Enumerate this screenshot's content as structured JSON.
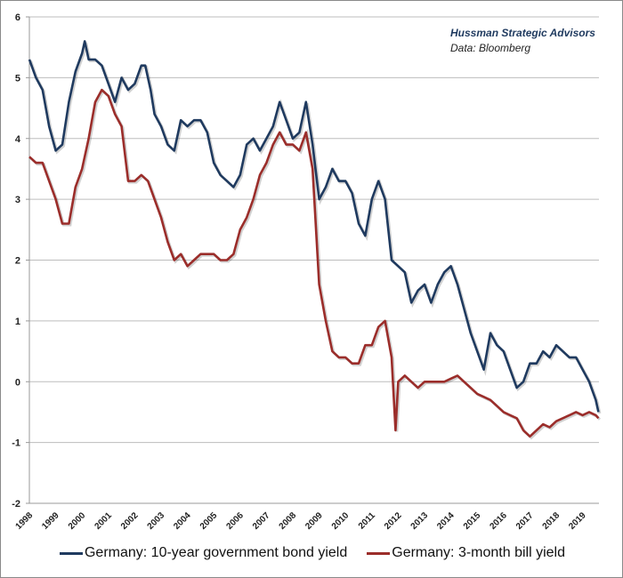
{
  "chart_data": {
    "type": "line",
    "title": "",
    "xlabel": "",
    "ylabel": "",
    "ylim": [
      -2,
      6
    ],
    "yticks": [
      "6",
      "5",
      "4",
      "3",
      "2",
      "1",
      "0",
      "-1",
      "-2"
    ],
    "xlim": [
      1998,
      2019.6
    ],
    "x_ticks": [
      "1998",
      "1999",
      "2000",
      "2001",
      "2002",
      "2003",
      "2004",
      "2005",
      "2006",
      "2007",
      "2008",
      "2009",
      "2010",
      "2011",
      "2012",
      "2013",
      "2014",
      "2015",
      "2016",
      "2017",
      "2018",
      "2019"
    ],
    "grid": "horizontal",
    "legend_position": "bottom",
    "annotation": {
      "line1": "Hussman Strategic Advisors",
      "line2": "Data: Bloomberg"
    },
    "series": [
      {
        "name": "Germany: 10-year government bond yield",
        "color": "#1f3a5f",
        "x": [
          1998,
          1998.25,
          1998.5,
          1998.75,
          1999,
          1999.25,
          1999.5,
          1999.75,
          2000,
          2000.1,
          2000.25,
          2000.5,
          2000.75,
          2001,
          2001.25,
          2001.5,
          2001.75,
          2002,
          2002.25,
          2002.4,
          2002.6,
          2002.75,
          2003,
          2003.25,
          2003.5,
          2003.75,
          2004,
          2004.25,
          2004.5,
          2004.75,
          2005,
          2005.25,
          2005.5,
          2005.75,
          2006,
          2006.25,
          2006.5,
          2006.75,
          2007,
          2007.25,
          2007.5,
          2007.75,
          2008,
          2008.25,
          2008.5,
          2008.75,
          2009,
          2009.25,
          2009.5,
          2009.75,
          2010,
          2010.25,
          2010.5,
          2010.75,
          2011,
          2011.25,
          2011.5,
          2011.75,
          2012,
          2012.25,
          2012.5,
          2012.75,
          2013,
          2013.25,
          2013.5,
          2013.75,
          2014,
          2014.25,
          2014.5,
          2014.75,
          2015,
          2015.25,
          2015.5,
          2015.75,
          2016,
          2016.25,
          2016.5,
          2016.75,
          2017,
          2017.25,
          2017.5,
          2017.75,
          2018,
          2018.25,
          2018.5,
          2018.75,
          2019,
          2019.25,
          2019.5,
          2019.6
        ],
        "y": [
          5.3,
          5.0,
          4.8,
          4.2,
          3.8,
          3.9,
          4.6,
          5.1,
          5.4,
          5.6,
          5.3,
          5.3,
          5.2,
          4.9,
          4.6,
          5.0,
          4.8,
          4.9,
          5.2,
          5.2,
          4.8,
          4.4,
          4.2,
          3.9,
          3.8,
          4.3,
          4.2,
          4.3,
          4.3,
          4.1,
          3.6,
          3.4,
          3.3,
          3.2,
          3.4,
          3.9,
          4.0,
          3.8,
          4.0,
          4.2,
          4.6,
          4.3,
          4.0,
          4.1,
          4.6,
          3.9,
          3.0,
          3.2,
          3.5,
          3.3,
          3.3,
          3.1,
          2.6,
          2.4,
          3.0,
          3.3,
          3.0,
          2.0,
          1.9,
          1.8,
          1.3,
          1.5,
          1.6,
          1.3,
          1.6,
          1.8,
          1.9,
          1.6,
          1.2,
          0.8,
          0.5,
          0.2,
          0.8,
          0.6,
          0.5,
          0.2,
          -0.1,
          0.0,
          0.3,
          0.3,
          0.5,
          0.4,
          0.6,
          0.5,
          0.4,
          0.4,
          0.2,
          0.0,
          -0.3,
          -0.5
        ]
      },
      {
        "name": "Germany: 3-month bill yield",
        "color": "#9b2d2a",
        "x": [
          1998,
          1998.25,
          1998.5,
          1998.75,
          1999,
          1999.25,
          1999.5,
          1999.75,
          2000,
          2000.25,
          2000.5,
          2000.75,
          2001,
          2001.25,
          2001.5,
          2001.75,
          2002,
          2002.25,
          2002.5,
          2002.75,
          2003,
          2003.25,
          2003.5,
          2003.75,
          2004,
          2004.25,
          2004.5,
          2004.75,
          2005,
          2005.25,
          2005.5,
          2005.75,
          2006,
          2006.25,
          2006.5,
          2006.75,
          2007,
          2007.25,
          2007.5,
          2007.75,
          2008,
          2008.25,
          2008.5,
          2008.75,
          2009,
          2009.25,
          2009.5,
          2009.75,
          2010,
          2010.25,
          2010.5,
          2010.75,
          2011,
          2011.25,
          2011.5,
          2011.75,
          2011.9,
          2012,
          2012.25,
          2012.5,
          2012.75,
          2013,
          2013.25,
          2013.5,
          2013.75,
          2014,
          2014.25,
          2014.5,
          2014.75,
          2015,
          2015.25,
          2015.5,
          2015.75,
          2016,
          2016.25,
          2016.5,
          2016.75,
          2017,
          2017.25,
          2017.5,
          2017.75,
          2018,
          2018.25,
          2018.5,
          2018.75,
          2019,
          2019.25,
          2019.5,
          2019.6
        ],
        "y": [
          3.7,
          3.6,
          3.6,
          3.3,
          3.0,
          2.6,
          2.6,
          3.2,
          3.5,
          4.0,
          4.6,
          4.8,
          4.7,
          4.4,
          4.2,
          3.3,
          3.3,
          3.4,
          3.3,
          3.0,
          2.7,
          2.3,
          2.0,
          2.1,
          1.9,
          2.0,
          2.1,
          2.1,
          2.1,
          2.0,
          2.0,
          2.1,
          2.5,
          2.7,
          3.0,
          3.4,
          3.6,
          3.9,
          4.1,
          3.9,
          3.9,
          3.8,
          4.1,
          3.5,
          1.6,
          1.0,
          0.5,
          0.4,
          0.4,
          0.3,
          0.3,
          0.6,
          0.6,
          0.9,
          1.0,
          0.4,
          -0.8,
          0.0,
          0.1,
          0.0,
          -0.1,
          0.0,
          0.0,
          0.0,
          0.0,
          0.05,
          0.1,
          0.0,
          -0.1,
          -0.2,
          -0.25,
          -0.3,
          -0.4,
          -0.5,
          -0.55,
          -0.6,
          -0.8,
          -0.9,
          -0.8,
          -0.7,
          -0.75,
          -0.65,
          -0.6,
          -0.55,
          -0.5,
          -0.55,
          -0.5,
          -0.55,
          -0.6
        ]
      }
    ]
  }
}
